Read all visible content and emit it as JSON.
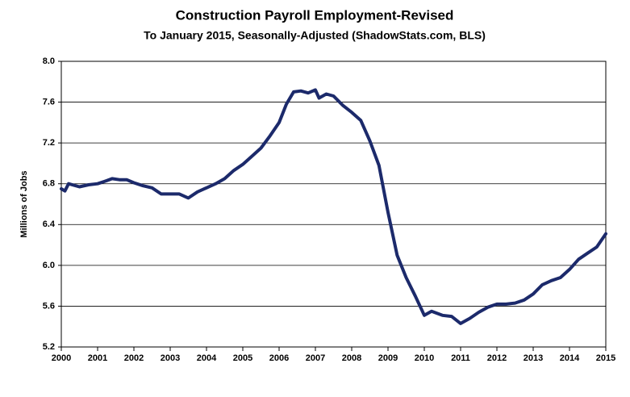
{
  "chart_data": {
    "type": "line",
    "title": "Construction Payroll Employment-Revised",
    "subtitle": "To January 2015, Seasonally-Adjusted (ShadowStats.com, BLS)",
    "y_label": "Millions  of Jobs",
    "x": [
      2000,
      2000.1,
      2000.2,
      2000.5,
      2000.75,
      2001,
      2001.25,
      2001.4,
      2001.6,
      2001.8,
      2002,
      2002.25,
      2002.5,
      2002.75,
      2003,
      2003.25,
      2003.5,
      2003.75,
      2004,
      2004.25,
      2004.5,
      2004.75,
      2005,
      2005.25,
      2005.5,
      2005.75,
      2006,
      2006.2,
      2006.4,
      2006.6,
      2006.8,
      2007,
      2007.1,
      2007.3,
      2007.5,
      2007.75,
      2008,
      2008.25,
      2008.5,
      2008.75,
      2009,
      2009.25,
      2009.5,
      2009.75,
      2010,
      2010.2,
      2010.5,
      2010.75,
      2011,
      2011.25,
      2011.5,
      2011.75,
      2012,
      2012.25,
      2012.5,
      2012.75,
      2013,
      2013.25,
      2013.5,
      2013.75,
      2014,
      2014.25,
      2014.5,
      2014.75,
      2015
    ],
    "series": [
      {
        "name": "Construction Payroll Employment",
        "color": "#1c2a6b",
        "values": [
          6.75,
          6.73,
          6.8,
          6.77,
          6.79,
          6.8,
          6.83,
          6.85,
          6.84,
          6.84,
          6.81,
          6.78,
          6.76,
          6.7,
          6.7,
          6.7,
          6.66,
          6.72,
          6.76,
          6.8,
          6.85,
          6.93,
          6.99,
          7.07,
          7.15,
          7.27,
          7.4,
          7.58,
          7.7,
          7.71,
          7.69,
          7.72,
          7.64,
          7.68,
          7.66,
          7.57,
          7.5,
          7.42,
          7.22,
          6.98,
          6.52,
          6.1,
          5.88,
          5.7,
          5.51,
          5.55,
          5.51,
          5.5,
          5.43,
          5.48,
          5.54,
          5.59,
          5.62,
          5.62,
          5.63,
          5.66,
          5.72,
          5.81,
          5.85,
          5.88,
          5.96,
          6.06,
          6.12,
          6.18,
          6.31
        ]
      }
    ],
    "xlim": [
      2000,
      2015
    ],
    "xticks": [
      2000,
      2001,
      2002,
      2003,
      2004,
      2005,
      2006,
      2007,
      2008,
      2009,
      2010,
      2011,
      2012,
      2013,
      2014,
      2015
    ],
    "ylim": [
      5.2,
      8.0
    ],
    "yticks": [
      {
        "value": 5.2,
        "label": "5.2"
      },
      {
        "value": 5.6,
        "label": "5.6"
      },
      {
        "value": 6.0,
        "label": "6.0"
      },
      {
        "value": 6.4,
        "label": "6.4"
      },
      {
        "value": 6.8,
        "label": "6.8"
      },
      {
        "value": 7.2,
        "label": "7.2"
      },
      {
        "value": 7.6,
        "label": "7.6"
      },
      {
        "value": 8.0,
        "label": "8.0"
      }
    ],
    "grid": true
  }
}
